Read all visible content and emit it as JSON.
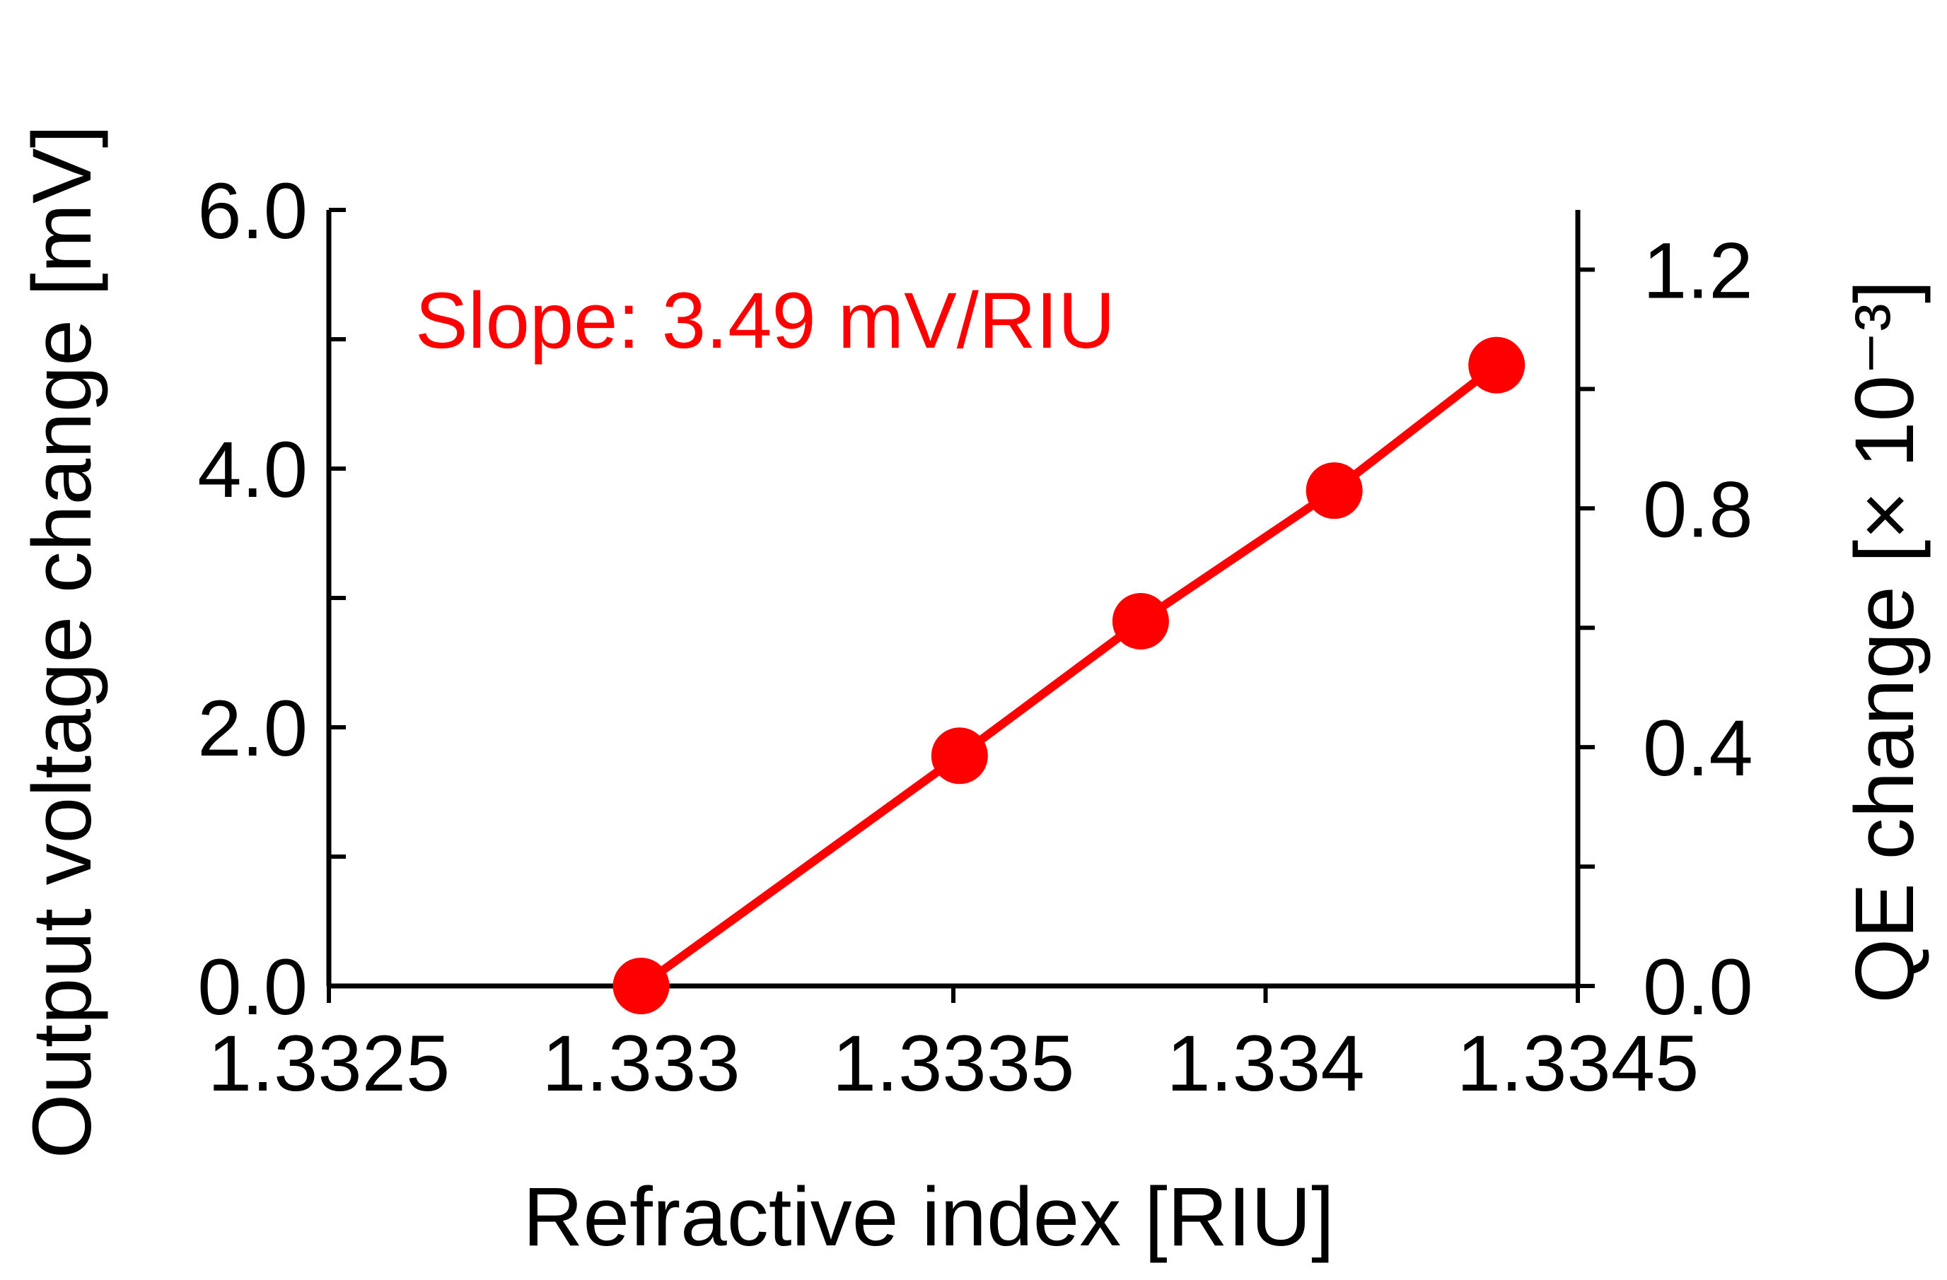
{
  "chart_data": {
    "type": "line",
    "annotation": "Slope: 3.49 mV/RIU",
    "xlabel": "Refractive index [RIU]",
    "ylabel": "Output voltage change [mV]",
    "y2label": "QE change [× 10⁻³]",
    "xlim": [
      1.3325,
      1.3345
    ],
    "ylim": [
      0,
      6
    ],
    "y2lim": [
      0,
      1.3
    ],
    "x_ticks": [
      {
        "value": 1.3325,
        "label": "1.3325"
      },
      {
        "value": 1.333,
        "label": "1.333"
      },
      {
        "value": 1.3335,
        "label": "1.3335"
      },
      {
        "value": 1.334,
        "label": "1.334"
      },
      {
        "value": 1.3345,
        "label": "1.3345"
      }
    ],
    "y_ticks": [
      {
        "value": 0,
        "label": "0.0"
      },
      {
        "value": 2,
        "label": "2.0"
      },
      {
        "value": 4,
        "label": "4.0"
      },
      {
        "value": 6,
        "label": "6.0"
      }
    ],
    "y_minor_ticks": [
      1,
      3,
      5
    ],
    "y2_ticks": [
      {
        "value": 0,
        "label": "0.0"
      },
      {
        "value": 0.4,
        "label": "0.4"
      },
      {
        "value": 0.8,
        "label": "0.8"
      },
      {
        "value": 1.2,
        "label": "1.2"
      }
    ],
    "y2_minor_ticks": [
      0.2,
      0.6,
      1.0
    ],
    "grid": false,
    "series": [
      {
        "color": "#ff0000",
        "x": [
          1.333,
          1.33351,
          1.3338,
          1.33411,
          1.33437
        ],
        "y": [
          0.0,
          1.78,
          2.82,
          3.83,
          4.8
        ]
      }
    ]
  }
}
